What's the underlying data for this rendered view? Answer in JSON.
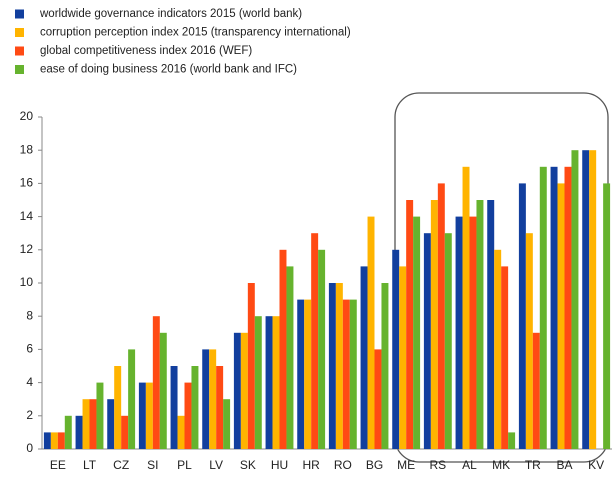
{
  "chart_data": {
    "type": "bar",
    "categories": [
      "EE",
      "LT",
      "CZ",
      "SI",
      "PL",
      "LV",
      "SK",
      "HU",
      "HR",
      "RO",
      "BG",
      "ME",
      "RS",
      "AL",
      "MK",
      "TR",
      "BA",
      "KV"
    ],
    "series": [
      {
        "name": "worldwide  governance  indicators 2015  (world bank)",
        "color": "#123f9e",
        "values": [
          1,
          2,
          3,
          4,
          5,
          6,
          7,
          8,
          9,
          10,
          11,
          12,
          13,
          14,
          15,
          16,
          17,
          18
        ]
      },
      {
        "name": "corruption  perception  index  2015  (transparency  international)",
        "color": "#ffb400",
        "values": [
          1,
          3,
          5,
          4,
          2,
          6,
          7,
          8,
          9,
          10,
          14,
          11,
          15,
          17,
          12,
          13,
          16,
          18
        ]
      },
      {
        "name": "global  competitiveness  index 2016  (WEF)",
        "color": "#ff4a14",
        "values": [
          1,
          3,
          2,
          8,
          4,
          5,
          10,
          12,
          13,
          9,
          6,
          15,
          16,
          14,
          11,
          7,
          17,
          null
        ]
      },
      {
        "name": "ease  of doing  business  2016  (world bank  and IFC)",
        "color": "#66b32e",
        "values": [
          2,
          4,
          6,
          7,
          5,
          3,
          8,
          11,
          12,
          9,
          10,
          14,
          13,
          15,
          1,
          17,
          18,
          16
        ]
      }
    ],
    "ylim": [
      0,
      20
    ],
    "yticks": [
      0,
      2,
      4,
      6,
      8,
      10,
      12,
      14,
      16,
      18,
      20
    ],
    "grid": false
  }
}
